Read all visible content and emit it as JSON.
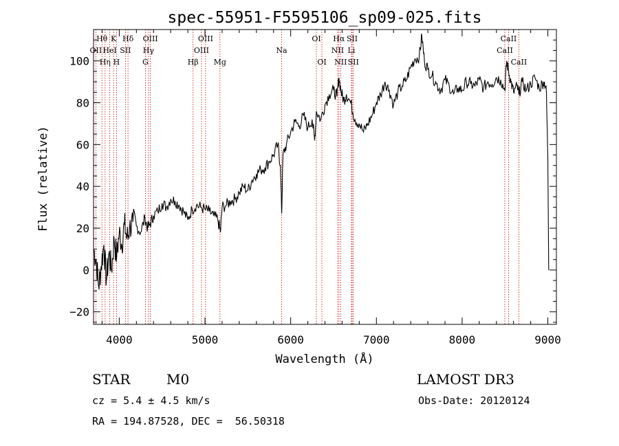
{
  "chart_data": {
    "type": "line",
    "title": "spec-55951-F5595106_sp09-025.fits",
    "xlabel": "Wavelength (Å)",
    "ylabel": "Flux (relative)",
    "xlim": [
      3700,
      9100
    ],
    "ylim": [
      -26,
      115
    ],
    "x_ticks": [
      4000,
      5000,
      6000,
      7000,
      8000,
      9000
    ],
    "y_ticks": [
      -20,
      0,
      20,
      40,
      60,
      80,
      100
    ],
    "grid": false,
    "series": [
      {
        "x": [
          3700,
          3730,
          3760,
          3790,
          3820,
          3850,
          3880,
          3910,
          3940,
          3970,
          4000,
          4030,
          4060,
          4090,
          4120,
          4160,
          4200,
          4250,
          4300,
          4330,
          4360,
          4400,
          4450,
          4500,
          4550,
          4600,
          4650,
          4700,
          4750,
          4800,
          4850,
          4900,
          4950,
          5000,
          5050,
          5100,
          5150,
          5180,
          5200,
          5250,
          5300,
          5350,
          5400,
          5450,
          5500,
          5550,
          5600,
          5650,
          5700,
          5750,
          5800,
          5850,
          5880,
          5895,
          5910,
          5950,
          6000,
          6050,
          6100,
          6150,
          6200,
          6250,
          6280,
          6300,
          6350,
          6400,
          6450,
          6500,
          6540,
          6563,
          6590,
          6620,
          6650,
          6700,
          6750,
          6800,
          6850,
          6900,
          6950,
          7000,
          7050,
          7100,
          7150,
          7200,
          7250,
          7300,
          7350,
          7400,
          7450,
          7500,
          7530,
          7560,
          7600,
          7650,
          7700,
          7750,
          7800,
          7850,
          7900,
          7950,
          8000,
          8050,
          8100,
          8150,
          8200,
          8250,
          8300,
          8350,
          8400,
          8450,
          8498,
          8520,
          8542,
          8570,
          8600,
          8640,
          8662,
          8700,
          8750,
          8800,
          8850,
          8900,
          8950,
          8980,
          9000,
          9010
        ],
        "values": [
          10,
          5,
          -8,
          2,
          12,
          -5,
          8,
          0,
          15,
          6,
          18,
          12,
          22,
          15,
          20,
          23,
          21,
          18,
          25,
          20,
          22,
          26,
          28,
          32,
          30,
          34,
          33,
          31,
          28,
          24,
          29,
          31,
          30,
          29,
          28,
          26,
          24,
          18,
          30,
          31,
          33,
          34,
          37,
          40,
          38,
          43,
          46,
          48,
          49,
          52,
          55,
          60,
          50,
          27,
          55,
          60,
          66,
          71,
          69,
          74,
          68,
          72,
          62,
          76,
          72,
          79,
          84,
          86,
          83,
          92,
          85,
          81,
          84,
          80,
          72,
          70,
          66,
          70,
          74,
          80,
          84,
          90,
          86,
          79,
          85,
          88,
          91,
          97,
          101,
          102,
          112,
          100,
          96,
          93,
          89,
          86,
          91,
          88,
          84,
          87,
          86,
          90,
          89,
          88,
          91,
          87,
          90,
          89,
          92,
          91,
          86,
          100,
          95,
          90,
          85,
          88,
          84,
          90,
          86,
          89,
          92,
          87,
          90,
          88,
          55,
          0
        ]
      }
    ],
    "lines": [
      {
        "name": "Hθ",
        "x": 3798,
        "row": 0
      },
      {
        "name": "OII",
        "x": 3727,
        "row": 1
      },
      {
        "name": "Hη",
        "x": 3835,
        "row": 2
      },
      {
        "name": "HeI",
        "x": 3889,
        "row": 1
      },
      {
        "name": "K",
        "x": 3934,
        "row": 0
      },
      {
        "name": "H",
        "x": 3968,
        "row": 2
      },
      {
        "name": "SII",
        "x": 4072,
        "row": 1
      },
      {
        "name": "Hδ",
        "x": 4102,
        "row": 0
      },
      {
        "name": "G",
        "x": 4305,
        "row": 2
      },
      {
        "name": "Hγ",
        "x": 4341,
        "row": 1
      },
      {
        "name": "OIII",
        "x": 4363,
        "row": 0
      },
      {
        "name": "Hβ",
        "x": 4861,
        "row": 2
      },
      {
        "name": "OIII",
        "x": 4959,
        "row": 1
      },
      {
        "name": "OIII",
        "x": 5007,
        "row": 0
      },
      {
        "name": "Mg",
        "x": 5175,
        "row": 2
      },
      {
        "name": "Na",
        "x": 5894,
        "row": 1
      },
      {
        "name": "OI",
        "x": 6300,
        "row": 0
      },
      {
        "name": "OI",
        "x": 6364,
        "row": 2
      },
      {
        "name": "NII",
        "x": 6548,
        "row": 1
      },
      {
        "name": "Hα",
        "x": 6563,
        "row": 0
      },
      {
        "name": "NII",
        "x": 6583,
        "row": 2
      },
      {
        "name": "Li",
        "x": 6708,
        "row": 1
      },
      {
        "name": "SII",
        "x": 6717,
        "row": 0
      },
      {
        "name": "SII",
        "x": 6731,
        "row": 2
      },
      {
        "name": "CaII",
        "x": 8498,
        "row": 1
      },
      {
        "name": "CaII",
        "x": 8542,
        "row": 0
      },
      {
        "name": "CaII",
        "x": 8662,
        "row": 2
      }
    ]
  },
  "footer": {
    "class": "STAR",
    "subclass": "M0",
    "survey": "LAMOST DR3",
    "cz": "cz = 5.4 ± 4.5 km/s",
    "obs_date": "Obs-Date: 20120124",
    "coords": "RA = 194.87528, DEC =  56.50318"
  },
  "colors": {
    "line_marker": "#cc0000",
    "spectrum": "#000000"
  }
}
